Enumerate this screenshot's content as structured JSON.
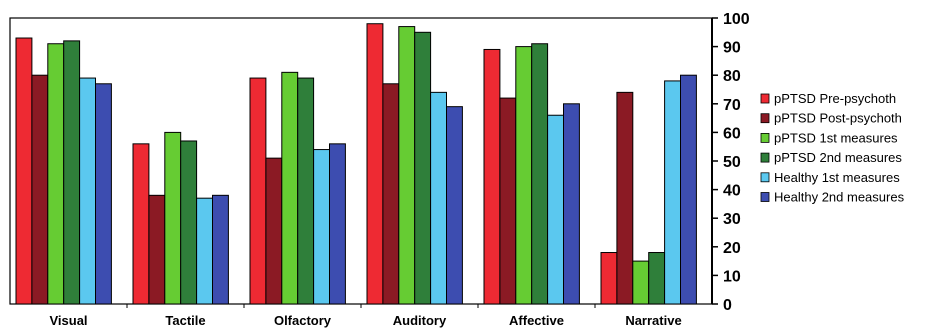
{
  "chart_data": {
    "type": "bar",
    "categories": [
      "Visual",
      "Tactile",
      "Olfactory",
      "Auditory",
      "Affective",
      "Narrative"
    ],
    "series": [
      {
        "name": "pPTSD Pre-psychoth",
        "color": "#ee2a33",
        "values": [
          93,
          56,
          79,
          98,
          89,
          18
        ]
      },
      {
        "name": "pPTSD Post-psychoth",
        "color": "#8b1a24",
        "values": [
          80,
          38,
          51,
          77,
          72,
          74
        ]
      },
      {
        "name": "pPTSD 1st measures",
        "color": "#66cc33",
        "values": [
          91,
          60,
          81,
          97,
          90,
          15
        ]
      },
      {
        "name": "pPTSD 2nd measures",
        "color": "#2f7f3a",
        "values": [
          92,
          57,
          79,
          95,
          91,
          18
        ]
      },
      {
        "name": "Healthy 1st measures",
        "color": "#5bc8ef",
        "values": [
          79,
          37,
          54,
          74,
          66,
          78
        ]
      },
      {
        "name": "Healthy 2nd measures",
        "color": "#3d4db0",
        "values": [
          77,
          38,
          56,
          69,
          70,
          80
        ]
      }
    ],
    "y_axis": {
      "position": "right",
      "ylim": [
        0,
        100
      ],
      "ticks": [
        "0",
        "10",
        "20",
        "30",
        "40",
        "50",
        "60",
        "70",
        "80",
        "90",
        "100"
      ]
    },
    "grid": false,
    "legend_position": "right"
  }
}
